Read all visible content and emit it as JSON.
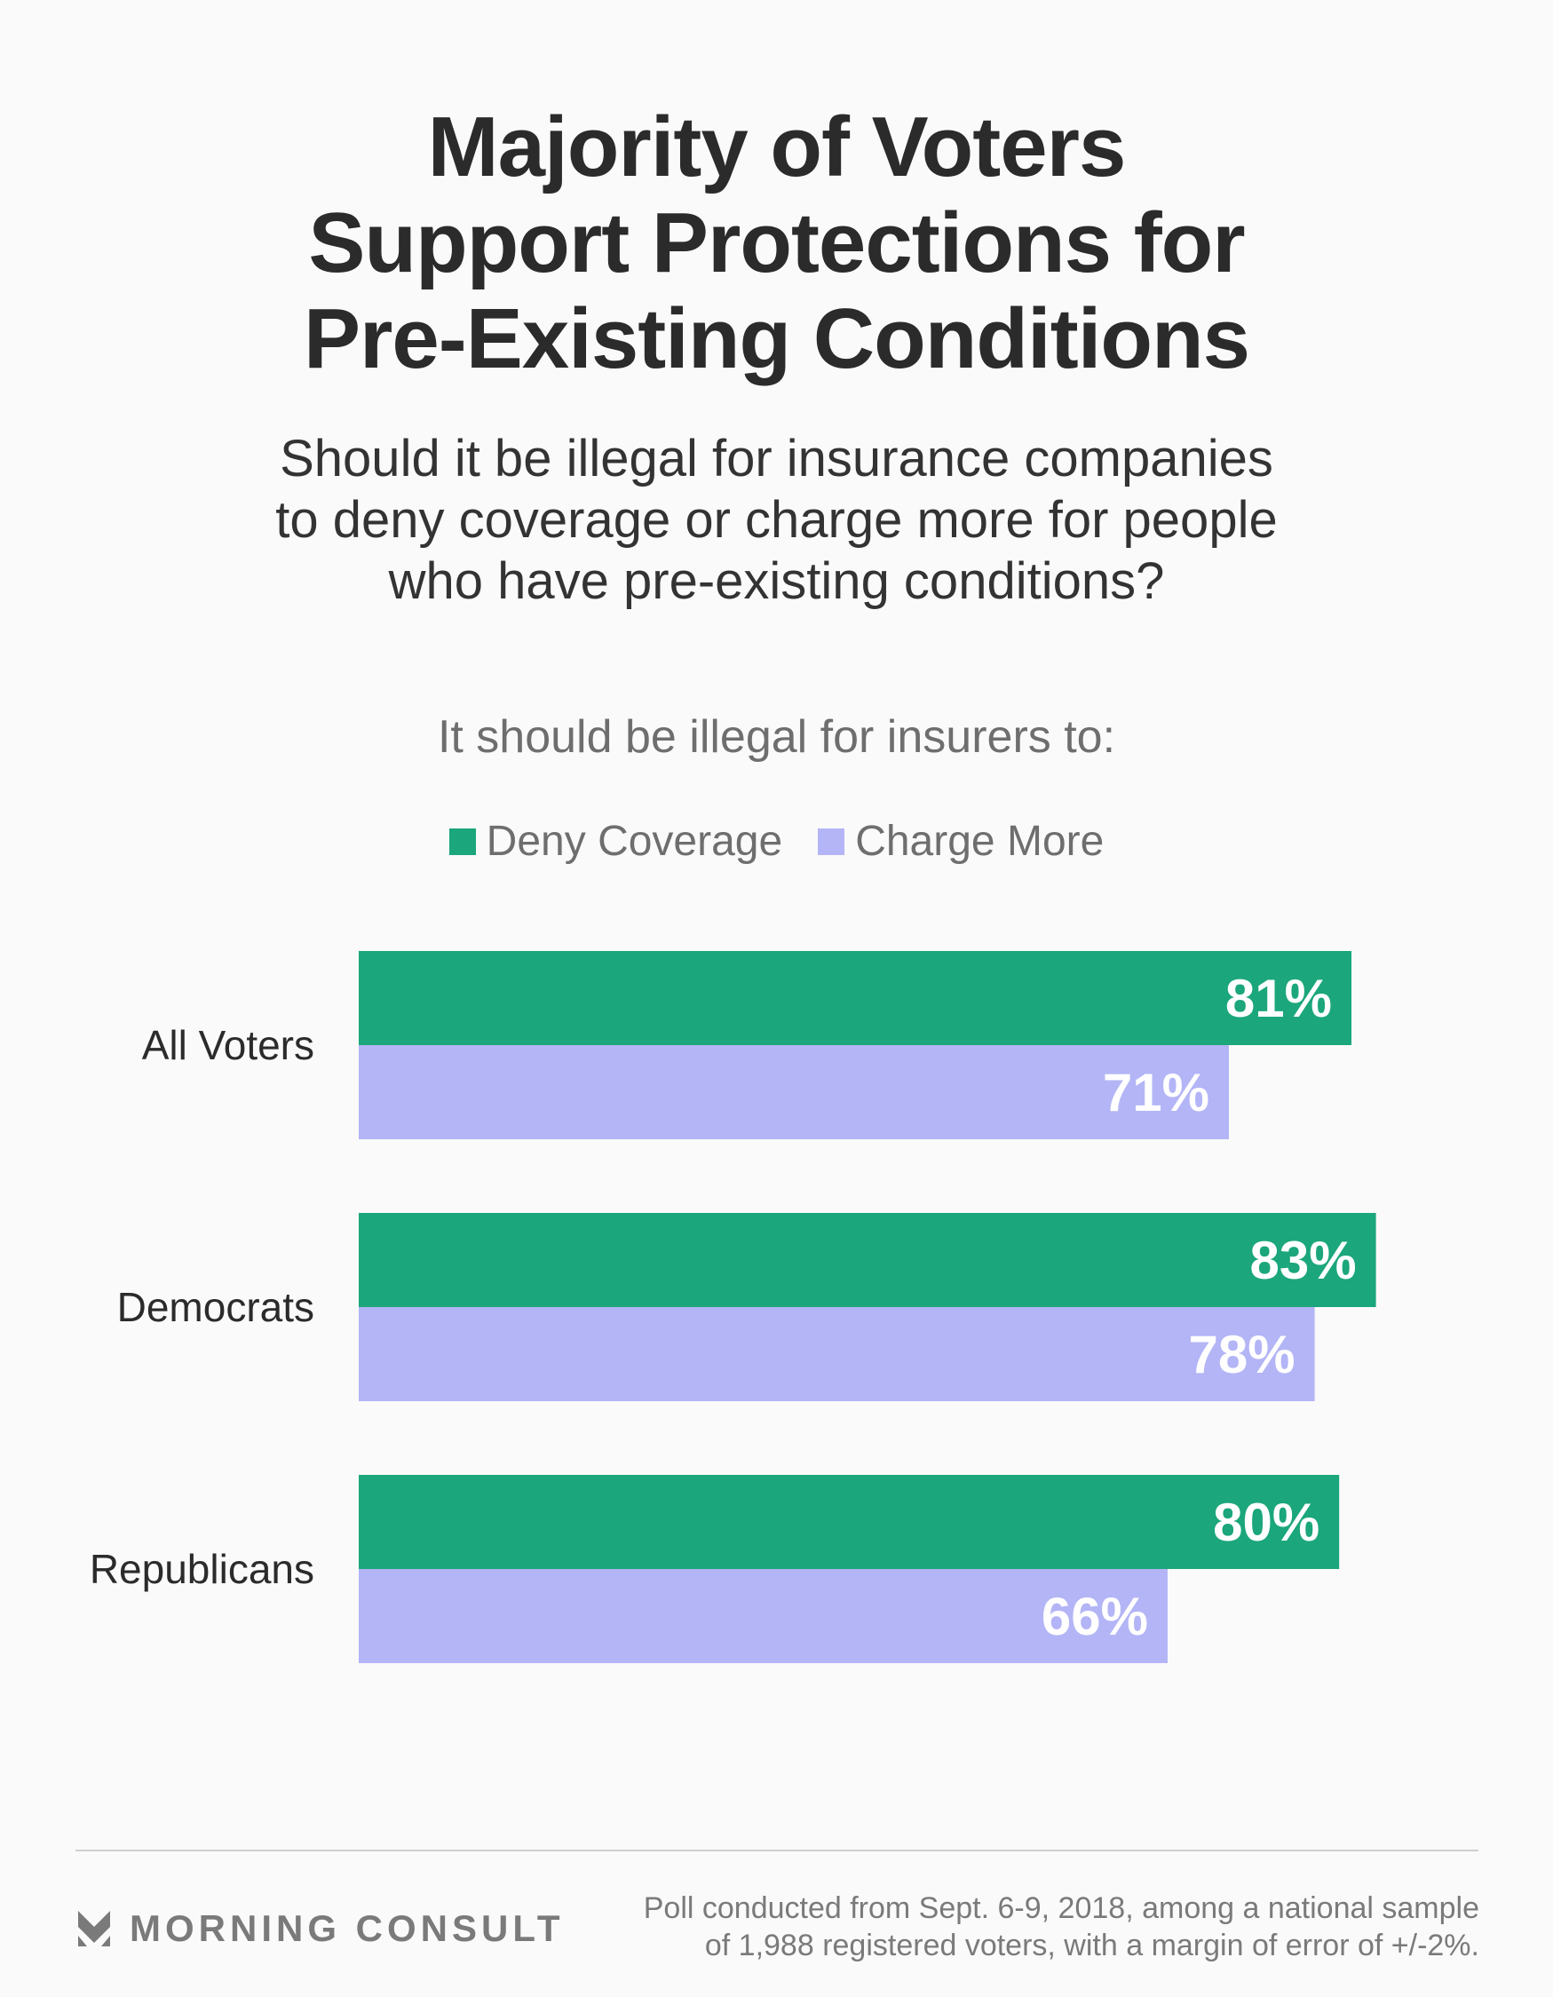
{
  "header": {
    "title_lines": [
      "Majority of Voters",
      "Support Protections for",
      "Pre-Existing Conditions"
    ],
    "question_lines": [
      "Should it be illegal for insurance companies",
      "to deny coverage or charge more for people",
      "who have pre-existing conditions?"
    ]
  },
  "section_label": "It should be illegal for insurers to:",
  "colors": {
    "deny": "#1ba67b",
    "charge": "#b3b5f6"
  },
  "chart_data": {
    "type": "bar",
    "orientation": "horizontal",
    "title": "Majority of Voters Support Protections for Pre-Existing Conditions",
    "subtitle": "It should be illegal for insurers to:",
    "categories": [
      "All Voters",
      "Democrats",
      "Republicans"
    ],
    "series": [
      {
        "name": "Deny Coverage",
        "values": [
          81,
          83,
          80
        ],
        "labels": [
          "81%",
          "83%",
          "80%"
        ]
      },
      {
        "name": "Charge More",
        "values": [
          71,
          78,
          66
        ],
        "labels": [
          "71%",
          "78%",
          "66%"
        ]
      }
    ],
    "xlabel": "",
    "ylabel": "",
    "xlim": [
      0,
      100
    ],
    "grid": false,
    "legend": "top-center",
    "unit": "%"
  },
  "footer": {
    "brand": "MORNING CONSULT",
    "source_lines": [
      "Poll conducted from Sept. 6-9, 2018, among a national sample",
      "of 1,988 registered voters, with a margin of error of +/-2%."
    ]
  }
}
